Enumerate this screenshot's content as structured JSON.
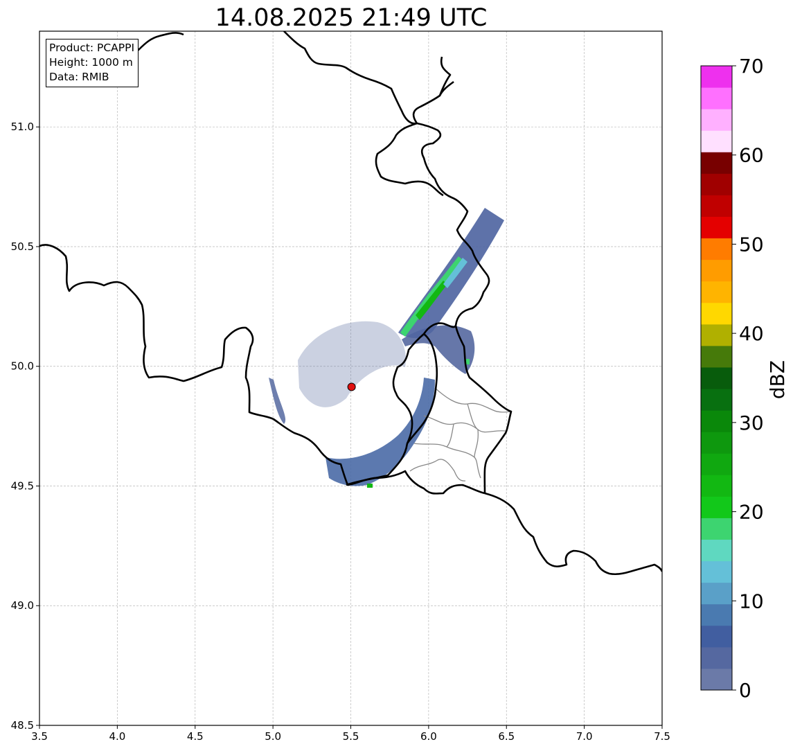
{
  "title": "14.08.2025 21:49 UTC",
  "info": {
    "product": "Product: PCAPPI",
    "height": "Height: 1000 m",
    "data": "Data: RMIB"
  },
  "map": {
    "lon_range": [
      3.5,
      7.5
    ],
    "lat_range": [
      48.5,
      51.4
    ],
    "x_ticks": [
      "3.5",
      "4.0",
      "4.5",
      "5.0",
      "5.5",
      "6.0",
      "6.5",
      "7.0",
      "7.5"
    ],
    "y_ticks": [
      "48.5",
      "49.0",
      "49.5",
      "50.0",
      "50.5",
      "51.0"
    ],
    "grid": true,
    "radar_site": {
      "lon": 5.505,
      "lat": 49.914,
      "color": "#e01010"
    }
  },
  "colorbar": {
    "label": "dBZ",
    "range": [
      0,
      70
    ],
    "ticks": [
      "0",
      "10",
      "20",
      "30",
      "40",
      "50",
      "60",
      "70"
    ],
    "colors": [
      "#6b7aa8",
      "#5568a0",
      "#415ea0",
      "#4a7ab0",
      "#5aa0c8",
      "#64c0d8",
      "#5fd8c0",
      "#3dd470",
      "#12c81a",
      "#12b812",
      "#10a810",
      "#0e980e",
      "#0a880a",
      "#087010",
      "#085c0c",
      "#467a0a",
      "#b0b000",
      "#ffd800",
      "#ffb400",
      "#ff9c00",
      "#ff7c00",
      "#e40000",
      "#c00000",
      "#a00000",
      "#780000",
      "#ffe0ff",
      "#ffb0ff",
      "#ff70ff",
      "#ee30ee"
    ]
  }
}
